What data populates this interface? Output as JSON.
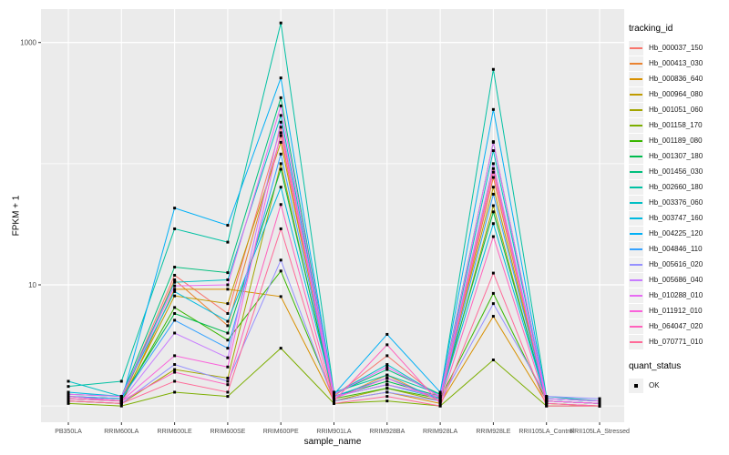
{
  "figure": {
    "background": "#ffffff",
    "panel_background": "#EBEBEB",
    "grid_color": "#ffffff",
    "tick_label_color": "#4D4D4D",
    "point_color": "#000000"
  },
  "chart_data": {
    "type": "line",
    "title": "",
    "xlabel": "sample_name",
    "ylabel": "FPKM + 1",
    "y_scale": "log10",
    "y_ticks": [
      10,
      1000
    ],
    "y_minor_ticks": [
      1,
      100
    ],
    "ylim": [
      1,
      1500
    ],
    "grid": true,
    "legend_position": "right",
    "legend_title": "tracking_id",
    "quant_legend": {
      "title": "quant_status",
      "items": [
        "OK"
      ]
    },
    "categories": [
      "PB350LA",
      "RRIM600LA",
      "RRIM600LE",
      "RRIM600SE",
      "RRIM600PE",
      "RRIM901LA",
      "RRIM928BA",
      "RRIM928LA",
      "RRIM928LE",
      "RRII105LA_Control",
      "RRII105LA_Stressed"
    ],
    "series": [
      {
        "name": "Hb_000037_150",
        "color": "#F8766D",
        "values": [
          1.2,
          1.15,
          12,
          5.8,
          200,
          1.2,
          2.6,
          1.15,
          91,
          1.1,
          1.05
        ]
      },
      {
        "name": "Hb_000413_030",
        "color": "#EA8331",
        "values": [
          1.15,
          1.1,
          11,
          4.6,
          170,
          1.15,
          1.8,
          1.1,
          77,
          1.1,
          1.05
        ]
      },
      {
        "name": "Hb_000836_640",
        "color": "#D89000",
        "values": [
          1.1,
          1.05,
          9.2,
          9.2,
          8,
          1.1,
          1.3,
          1.05,
          5.5,
          1.05,
          1.0
        ]
      },
      {
        "name": "Hb_000964_080",
        "color": "#C09B00",
        "values": [
          1.2,
          1.1,
          8.1,
          7.0,
          150,
          1.2,
          1.5,
          1.2,
          64,
          1.1,
          1.05
        ]
      },
      {
        "name": "Hb_001051_060",
        "color": "#A3A500",
        "values": [
          1.1,
          1.05,
          2.0,
          1.7,
          100,
          1.1,
          1.4,
          1.1,
          45,
          1.05,
          1.0
        ]
      },
      {
        "name": "Hb_001158_170",
        "color": "#7CAE00",
        "values": [
          1.05,
          1.0,
          1.3,
          1.2,
          3.0,
          1.05,
          1.1,
          1.0,
          2.4,
          1.0,
          1.0
        ]
      },
      {
        "name": "Hb_001189_080",
        "color": "#39B600",
        "values": [
          1.15,
          1.1,
          6.5,
          3.5,
          13,
          1.15,
          1.4,
          1.15,
          8.5,
          1.1,
          1.05
        ]
      },
      {
        "name": "Hb_001307_180",
        "color": "#00BB4E",
        "values": [
          1.2,
          1.15,
          5.8,
          4.0,
          90,
          1.2,
          1.6,
          1.2,
          40,
          1.1,
          1.05
        ]
      },
      {
        "name": "Hb_001456_030",
        "color": "#00BF7D",
        "values": [
          1.25,
          1.2,
          14,
          12.6,
          350,
          1.25,
          2.0,
          1.25,
          150,
          1.15,
          1.1
        ]
      },
      {
        "name": "Hb_002660_180",
        "color": "#00C1A3",
        "values": [
          1.45,
          1.6,
          29,
          22.5,
          1450,
          1.3,
          1.8,
          1.25,
          600,
          1.2,
          1.1
        ]
      },
      {
        "name": "Hb_003376_060",
        "color": "#00BFC4",
        "values": [
          1.6,
          1.2,
          10.5,
          11,
          250,
          1.25,
          2.2,
          1.2,
          128,
          1.15,
          1.1
        ]
      },
      {
        "name": "Hb_003747_160",
        "color": "#00BAE0",
        "values": [
          1.3,
          1.2,
          8.8,
          5.0,
          64,
          1.2,
          1.7,
          1.15,
          32,
          1.1,
          1.05
        ]
      },
      {
        "name": "Hb_004225_120",
        "color": "#00B0F6",
        "values": [
          1.2,
          1.1,
          43,
          31,
          510,
          1.25,
          3.9,
          1.3,
          280,
          1.15,
          1.1
        ]
      },
      {
        "name": "Hb_004846_110",
        "color": "#35A2FF",
        "values": [
          1.2,
          1.15,
          5.1,
          3.0,
          120,
          1.2,
          1.5,
          1.15,
          56,
          1.1,
          1.05
        ]
      },
      {
        "name": "Hb_005616_020",
        "color": "#9590FF",
        "values": [
          1.1,
          1.05,
          2.2,
          1.6,
          16,
          1.1,
          1.3,
          1.1,
          7.0,
          1.2,
          1.15
        ]
      },
      {
        "name": "Hb_005686_040",
        "color": "#C77CFF",
        "values": [
          1.15,
          1.1,
          4.0,
          2.5,
          220,
          1.2,
          1.5,
          1.2,
          100,
          1.1,
          1.05
        ]
      },
      {
        "name": "Hb_010288_010",
        "color": "#E76BF3",
        "values": [
          1.25,
          1.2,
          9.8,
          10,
          300,
          1.25,
          2.1,
          1.2,
          152,
          1.15,
          1.1
        ]
      },
      {
        "name": "Hb_011912_010",
        "color": "#FA62DB",
        "values": [
          1.2,
          1.1,
          2.6,
          2.1,
          180,
          1.15,
          1.7,
          1.1,
          85,
          1.1,
          1.05
        ]
      },
      {
        "name": "Hb_064047_020",
        "color": "#FF62BC",
        "values": [
          1.15,
          1.1,
          1.9,
          1.5,
          46,
          1.1,
          3.2,
          1.05,
          25,
          1.05,
          1.0
        ]
      },
      {
        "name": "Hb_070771_010",
        "color": "#FF6A98",
        "values": [
          1.1,
          1.05,
          1.6,
          1.3,
          29,
          1.05,
          1.2,
          1.0,
          12.5,
          1.0,
          1.0
        ]
      }
    ]
  }
}
